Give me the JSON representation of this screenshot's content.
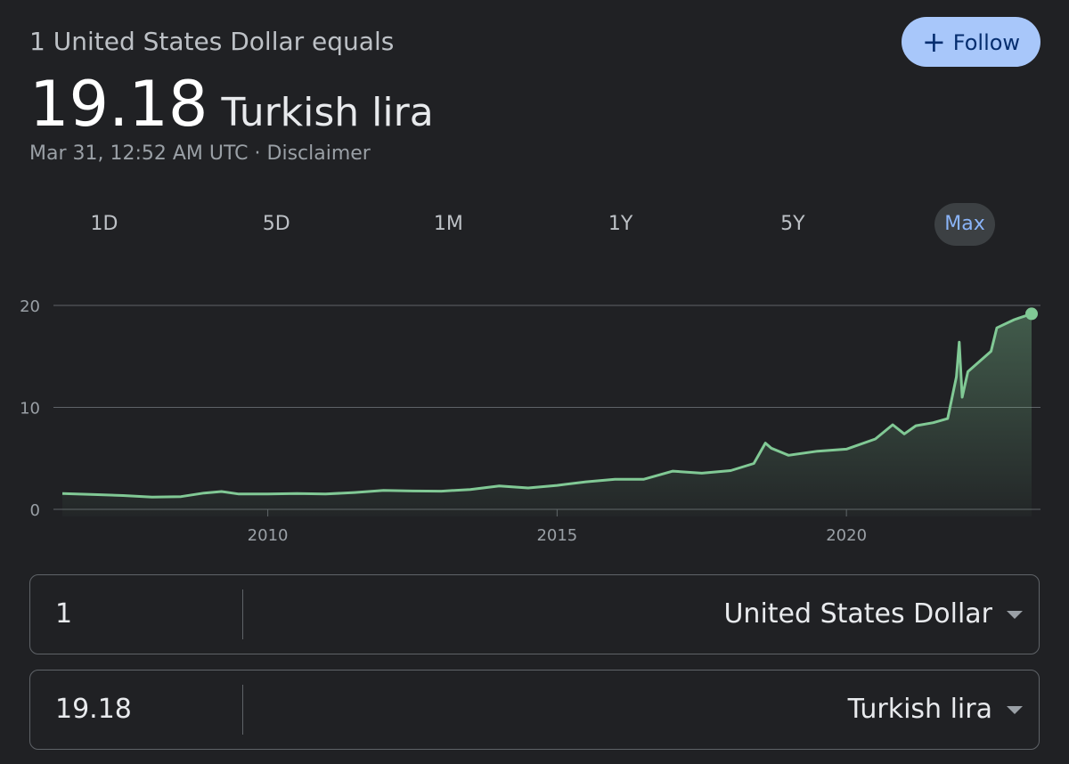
{
  "header": {
    "subtitle": "1 United States Dollar equals",
    "rate": "19.18",
    "currency": "Turkish lira",
    "timestamp": "Mar 31, 12:52 AM UTC",
    "separator": "·",
    "disclaimer": "Disclaimer",
    "follow": "Follow"
  },
  "tabs": [
    "1D",
    "5D",
    "1M",
    "1Y",
    "5Y",
    "Max"
  ],
  "converter": [
    {
      "amount": "1",
      "currency": "United States Dollar"
    },
    {
      "amount": "19.18",
      "currency": "Turkish lira"
    }
  ],
  "chart_data": {
    "type": "line",
    "color": "#81c995",
    "grid": true,
    "x": [
      2006.45,
      2007,
      2007.5,
      2008,
      2008.5,
      2008.9,
      2009.2,
      2009.5,
      2010,
      2010.5,
      2011,
      2011.5,
      2012,
      2012.5,
      2013,
      2013.5,
      2014,
      2014.5,
      2015,
      2015.5,
      2016,
      2016.5,
      2017,
      2017.5,
      2018,
      2018.4,
      2018.6,
      2018.7,
      2019,
      2019.5,
      2020,
      2020.5,
      2020.8,
      2021,
      2021.2,
      2021.5,
      2021.75,
      2021.9,
      2021.95,
      2022,
      2022.1,
      2022.5,
      2022.6,
      2022.9,
      2023.2
    ],
    "values": [
      1.55,
      1.45,
      1.35,
      1.2,
      1.25,
      1.6,
      1.75,
      1.5,
      1.5,
      1.55,
      1.5,
      1.65,
      1.85,
      1.8,
      1.78,
      1.95,
      2.3,
      2.1,
      2.35,
      2.7,
      2.95,
      2.95,
      3.75,
      3.55,
      3.8,
      4.5,
      6.5,
      6.0,
      5.3,
      5.7,
      5.9,
      6.9,
      8.3,
      7.4,
      8.2,
      8.5,
      8.9,
      13.0,
      16.4,
      11.0,
      13.5,
      15.5,
      17.8,
      18.6,
      19.18
    ],
    "xlim": [
      2006.45,
      2023.2
    ],
    "xticks": [
      2010,
      2015,
      2020
    ],
    "ylim": [
      0,
      20
    ],
    "yticks": [
      0,
      10,
      20
    ]
  }
}
